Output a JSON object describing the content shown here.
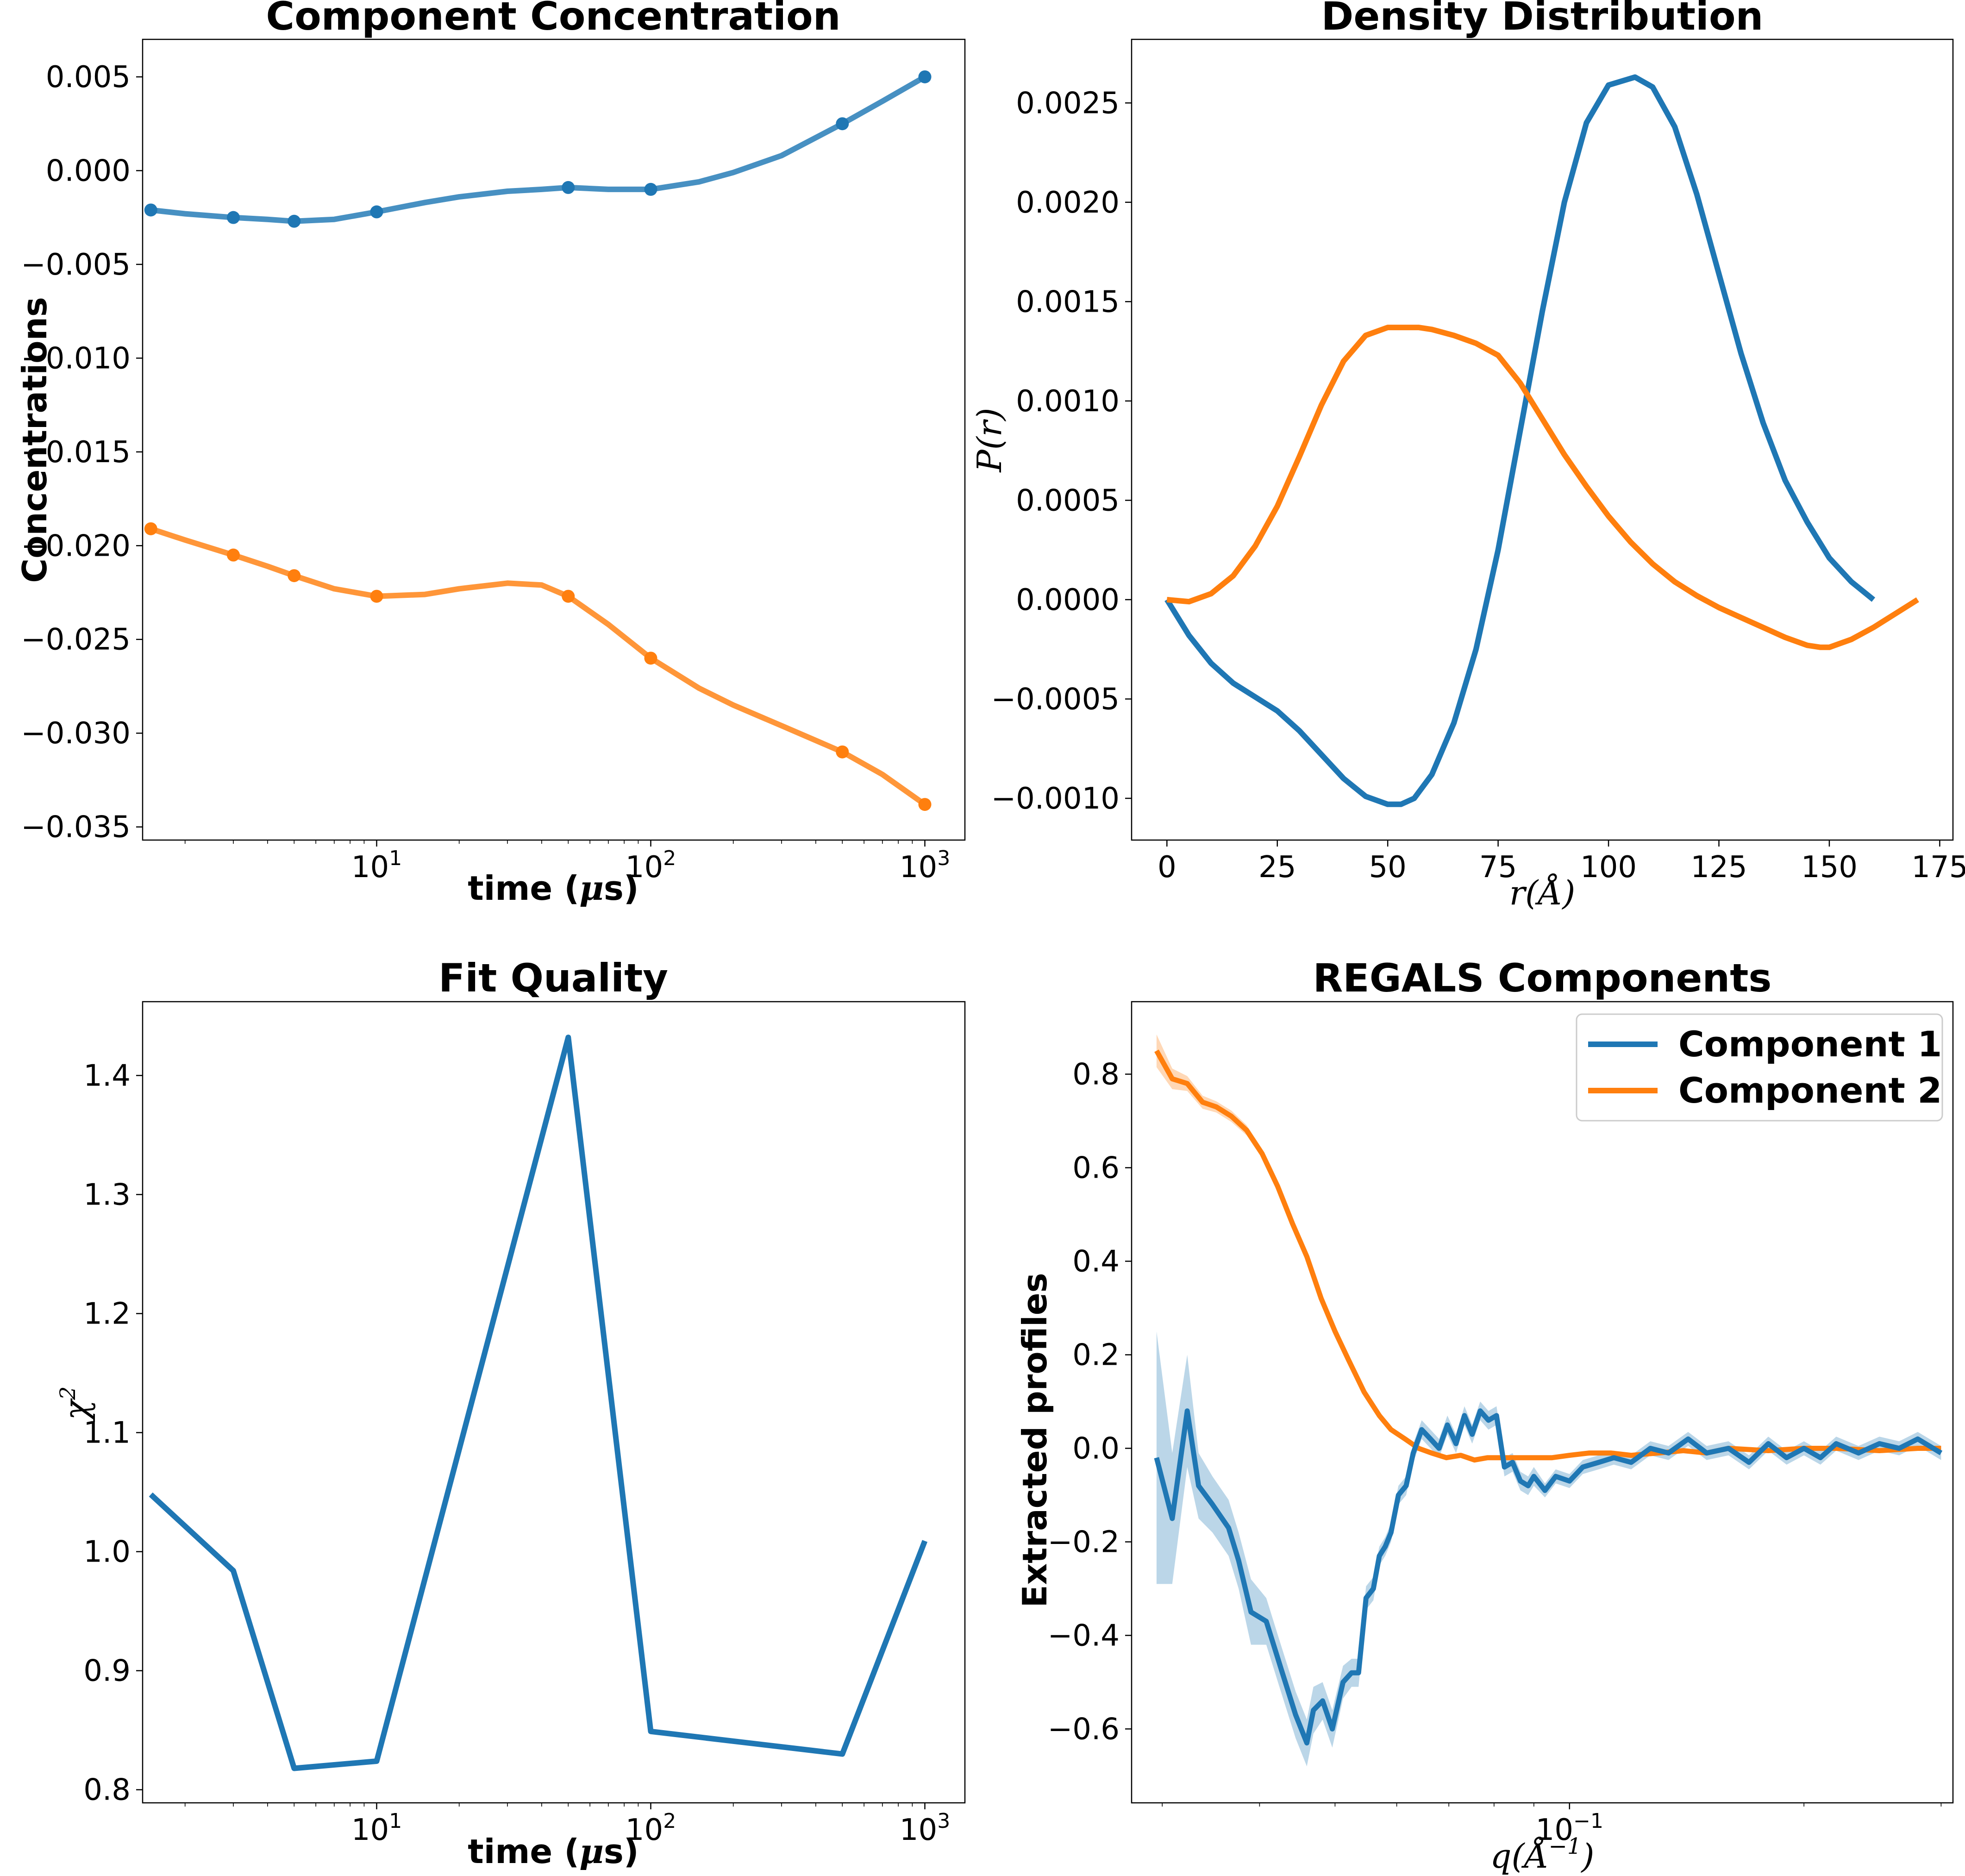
{
  "colors": {
    "component_1": "#1f77b4",
    "component_2": "#ff7f0e"
  },
  "chart_data": [
    {
      "type": "line",
      "title": "Component Concentration",
      "xlabel_main": "time (",
      "xlabel_mu": "μ",
      "xlabel_rest": "s)",
      "ylabel": "Concentrations",
      "xscale": "log",
      "xlim": [
        1.4,
        1400
      ],
      "ylim": [
        -0.0357,
        0.007
      ],
      "x_tick_base": "10",
      "x_tick_exponents": [
        "1",
        "2",
        "3"
      ],
      "x_ticks": [
        10,
        100,
        1000
      ],
      "y_ticks": [
        0.005,
        0.0,
        -0.005,
        -0.01,
        -0.015,
        -0.02,
        -0.025,
        -0.03,
        -0.035
      ],
      "y_tick_labels": [
        "0.005",
        "0.000",
        "−0.005",
        "−0.010",
        "−0.015",
        "−0.020",
        "−0.025",
        "−0.030",
        "−0.035"
      ],
      "markers": true,
      "series": [
        {
          "x": [
            1.5,
            3,
            5,
            10,
            50,
            100,
            500,
            1000
          ],
          "y": [
            -0.0021,
            -0.0025,
            -0.0027,
            -0.0022,
            -0.0009,
            -0.001,
            0.0025,
            0.005
          ]
        },
        {
          "x": [
            1.5,
            3,
            5,
            10,
            50,
            100,
            500,
            1000
          ],
          "y": [
            -0.0191,
            -0.0205,
            -0.0216,
            -0.0227,
            -0.0227,
            -0.026,
            -0.031,
            -0.0338
          ]
        }
      ],
      "smooth_curves": [
        {
          "x": [
            1.5,
            2,
            3,
            4,
            5,
            7,
            10,
            15,
            20,
            30,
            40,
            50,
            70,
            100,
            150,
            200,
            300,
            500,
            700,
            1000
          ],
          "y": [
            -0.0021,
            -0.0023,
            -0.0025,
            -0.0026,
            -0.0027,
            -0.0026,
            -0.0022,
            -0.0017,
            -0.0014,
            -0.0011,
            -0.001,
            -0.0009,
            -0.001,
            -0.001,
            -0.0006,
            -0.0001,
            0.0008,
            0.0025,
            0.0037,
            0.005
          ]
        },
        {
          "x": [
            1.5,
            2,
            3,
            4,
            5,
            7,
            10,
            15,
            20,
            30,
            40,
            50,
            70,
            100,
            150,
            200,
            300,
            500,
            700,
            1000
          ],
          "y": [
            -0.0191,
            -0.0197,
            -0.0205,
            -0.0211,
            -0.0216,
            -0.0223,
            -0.0227,
            -0.0226,
            -0.0223,
            -0.022,
            -0.0221,
            -0.0227,
            -0.0242,
            -0.026,
            -0.0276,
            -0.0285,
            -0.0296,
            -0.031,
            -0.0322,
            -0.0338
          ]
        }
      ]
    },
    {
      "type": "line",
      "title": "Density Distribution",
      "xlabel": "r(Å)",
      "ylabel": "P(r)",
      "xlim": [
        -8,
        178
      ],
      "ylim": [
        -0.00121,
        0.00282
      ],
      "x_ticks": [
        0,
        25,
        50,
        75,
        100,
        125,
        150,
        175
      ],
      "x_tick_labels": [
        "0",
        "25",
        "50",
        "75",
        "100",
        "125",
        "150",
        "175"
      ],
      "y_ticks": [
        0.0025,
        0.002,
        0.0015,
        0.001,
        0.0005,
        0.0,
        -0.0005,
        -0.001
      ],
      "y_tick_labels": [
        "0.0025",
        "0.0020",
        "0.0015",
        "0.0010",
        "0.0005",
        "0.0000",
        "−0.0005",
        "−0.0010"
      ],
      "series": [
        {
          "x": [
            0,
            5,
            10,
            15,
            20,
            25,
            30,
            35,
            40,
            45,
            50,
            53,
            56,
            60,
            65,
            70,
            75,
            80,
            85,
            90,
            95,
            100,
            106,
            110,
            115,
            120,
            125,
            130,
            135,
            140,
            145,
            150,
            155,
            160
          ],
          "y": [
            0,
            -0.00018,
            -0.00032,
            -0.00042,
            -0.00049,
            -0.00056,
            -0.00066,
            -0.00078,
            -0.0009,
            -0.00099,
            -0.00103,
            -0.00103,
            -0.001,
            -0.00088,
            -0.00062,
            -0.00025,
            0.00025,
            0.00085,
            0.00145,
            0.002,
            0.0024,
            0.00259,
            0.00263,
            0.00258,
            0.00238,
            0.00204,
            0.00164,
            0.00124,
            0.00089,
            0.0006,
            0.00039,
            0.00021,
            9e-05,
            0
          ]
        },
        {
          "x": [
            0,
            5,
            10,
            15,
            20,
            25,
            30,
            35,
            40,
            45,
            50,
            55,
            57,
            60,
            65,
            70,
            75,
            80,
            85,
            90,
            95,
            100,
            105,
            110,
            115,
            120,
            125,
            130,
            135,
            140,
            145,
            148,
            150,
            155,
            160,
            165,
            170
          ],
          "y": [
            0,
            -1e-05,
            3e-05,
            0.00012,
            0.00027,
            0.00047,
            0.00072,
            0.00098,
            0.0012,
            0.00133,
            0.00137,
            0.00137,
            0.00137,
            0.00136,
            0.00133,
            0.00129,
            0.00123,
            0.00109,
            0.00091,
            0.00073,
            0.00057,
            0.00042,
            0.00029,
            0.00018,
            9e-05,
            2e-05,
            -4e-05,
            -9e-05,
            -0.00014,
            -0.00019,
            -0.00023,
            -0.00024,
            -0.00024,
            -0.0002,
            -0.00014,
            -7e-05,
            0
          ]
        }
      ]
    },
    {
      "type": "line",
      "title": "Fit Quality",
      "xlabel_main": "time (",
      "xlabel_mu": "μ",
      "xlabel_rest": "s)",
      "ylabel": "χ",
      "ylabel_sup": "2",
      "xscale": "log",
      "xlim": [
        1.4,
        1400
      ],
      "ylim": [
        0.789,
        1.462
      ],
      "x_tick_base": "10",
      "x_tick_exponents": [
        "1",
        "2",
        "3"
      ],
      "x_ticks": [
        10,
        100,
        1000
      ],
      "y_ticks": [
        1.4,
        1.3,
        1.2,
        1.1,
        1.0,
        0.9,
        0.8
      ],
      "y_tick_labels": [
        "1.4",
        "1.3",
        "1.2",
        "1.1",
        "1.0",
        "0.9",
        "0.8"
      ],
      "series": [
        {
          "x": [
            1.5,
            3,
            5,
            10,
            50,
            100,
            500,
            1000
          ],
          "y": [
            1.048,
            0.984,
            0.818,
            0.824,
            1.432,
            0.849,
            0.83,
            1.009
          ]
        }
      ]
    },
    {
      "type": "line",
      "title": "REGALS Components",
      "xlabel": "q(Å",
      "xlabel_sup": "−1",
      "xlabel_close": ")",
      "ylabel": "Extracted profiles",
      "xscale": "log",
      "xlim": [
        0.0274,
        0.3107
      ],
      "ylim": [
        -0.758,
        0.955
      ],
      "x_tick_base": "10",
      "x_tick_exponents": [
        "−1"
      ],
      "x_ticks": [
        0.1
      ],
      "y_ticks": [
        0.8,
        0.6,
        0.4,
        0.2,
        0.0,
        -0.2,
        -0.4,
        -0.6
      ],
      "y_tick_labels": [
        "0.8",
        "0.6",
        "0.4",
        "0.2",
        "0.0",
        "−0.2",
        "−0.4",
        "−0.6"
      ],
      "legend": {
        "placement": "upper right",
        "entries": [
          "Component 1",
          "Component 2"
        ]
      },
      "series": [
        {
          "name": "Component 1",
          "x": [
            0.0295,
            0.0309,
            0.0323,
            0.0334,
            0.0348,
            0.0365,
            0.0376,
            0.039,
            0.0408,
            0.0426,
            0.0445,
            0.046,
            0.0469,
            0.0482,
            0.0496,
            0.0512,
            0.0525,
            0.0536,
            0.0548,
            0.056,
            0.057,
            0.058,
            0.059,
            0.0603,
            0.0617,
            0.063,
            0.0646,
            0.0663,
            0.068,
            0.0697,
            0.0715,
            0.0733,
            0.075,
            0.0768,
            0.0787,
            0.0806,
            0.0825,
            0.0845,
            0.0865,
            0.0885,
            0.09,
            0.093,
            0.096,
            0.1,
            0.104,
            0.109,
            0.114,
            0.12,
            0.127,
            0.134,
            0.142,
            0.15,
            0.16,
            0.17,
            0.18,
            0.19,
            0.2,
            0.21,
            0.22,
            0.235,
            0.25,
            0.265,
            0.28,
            0.3
          ],
          "y": [
            -0.02,
            -0.15,
            0.08,
            -0.08,
            -0.12,
            -0.17,
            -0.24,
            -0.35,
            -0.37,
            -0.47,
            -0.57,
            -0.63,
            -0.56,
            -0.54,
            -0.6,
            -0.5,
            -0.48,
            -0.48,
            -0.32,
            -0.3,
            -0.23,
            -0.21,
            -0.18,
            -0.1,
            -0.08,
            -0.01,
            0.04,
            0.02,
            0.0,
            0.05,
            0.01,
            0.07,
            0.03,
            0.08,
            0.06,
            0.07,
            -0.04,
            -0.03,
            -0.07,
            -0.08,
            -0.06,
            -0.09,
            -0.06,
            -0.07,
            -0.04,
            -0.03,
            -0.02,
            -0.03,
            0.0,
            -0.01,
            0.02,
            -0.01,
            0.0,
            -0.03,
            0.01,
            -0.02,
            0.0,
            -0.02,
            0.01,
            -0.01,
            0.01,
            0.0,
            0.02,
            -0.01
          ]
        },
        {
          "name": "Component 2",
          "x": [
            0.0295,
            0.0309,
            0.0323,
            0.0338,
            0.0352,
            0.0368,
            0.0385,
            0.0403,
            0.0422,
            0.0441,
            0.046,
            0.048,
            0.05,
            0.052,
            0.0545,
            0.057,
            0.059,
            0.0615,
            0.064,
            0.0665,
            0.0695,
            0.0725,
            0.0755,
            0.0785,
            0.082,
            0.086,
            0.09,
            0.095,
            0.1,
            0.106,
            0.113,
            0.12,
            0.13,
            0.14,
            0.15,
            0.16,
            0.18,
            0.2,
            0.22,
            0.25,
            0.28,
            0.3
          ],
          "y": [
            0.85,
            0.79,
            0.78,
            0.74,
            0.73,
            0.71,
            0.68,
            0.63,
            0.56,
            0.48,
            0.41,
            0.32,
            0.25,
            0.19,
            0.12,
            0.07,
            0.04,
            0.02,
            0.0,
            -0.01,
            -0.02,
            -0.015,
            -0.025,
            -0.02,
            -0.02,
            -0.02,
            -0.02,
            -0.02,
            -0.015,
            -0.01,
            -0.01,
            -0.015,
            -0.01,
            -0.005,
            -0.01,
            0.0,
            -0.005,
            0.0,
            0.0,
            -0.005,
            0.0,
            0.0
          ],
          "band": [
            0.035,
            0.022,
            0.016,
            0.014,
            0.012,
            0.012,
            0.011,
            0.01,
            0.01,
            0.009,
            0.008,
            0.008,
            0.007,
            0.007,
            0.006,
            0.006,
            0.006,
            0.005,
            0.005,
            0.005,
            0.005,
            0.005,
            0.005,
            0.005,
            0.005,
            0.005,
            0.005,
            0.005,
            0.005,
            0.005,
            0.005,
            0.005,
            0.005,
            0.005,
            0.005,
            0.005,
            0.005,
            0.005,
            0.005,
            0.005,
            0.005,
            0.005
          ]
        }
      ],
      "component_1_band": [
        0.27,
        0.14,
        0.12,
        0.07,
        0.06,
        0.06,
        0.06,
        0.07,
        0.05,
        0.05,
        0.05,
        0.05,
        0.05,
        0.04,
        0.04,
        0.035,
        0.03,
        0.03,
        0.025,
        0.025,
        0.02,
        0.02,
        0.02,
        0.02,
        0.02,
        0.02,
        0.02,
        0.02,
        0.02,
        0.02,
        0.02,
        0.02,
        0.02,
        0.02,
        0.02,
        0.02,
        0.02,
        0.02,
        0.02,
        0.02,
        0.02,
        0.015,
        0.015,
        0.015,
        0.015,
        0.015,
        0.015,
        0.015,
        0.015,
        0.015,
        0.015,
        0.015,
        0.015,
        0.015,
        0.015,
        0.015,
        0.015,
        0.015,
        0.015,
        0.015,
        0.015,
        0.015,
        0.015,
        0.015
      ]
    }
  ]
}
